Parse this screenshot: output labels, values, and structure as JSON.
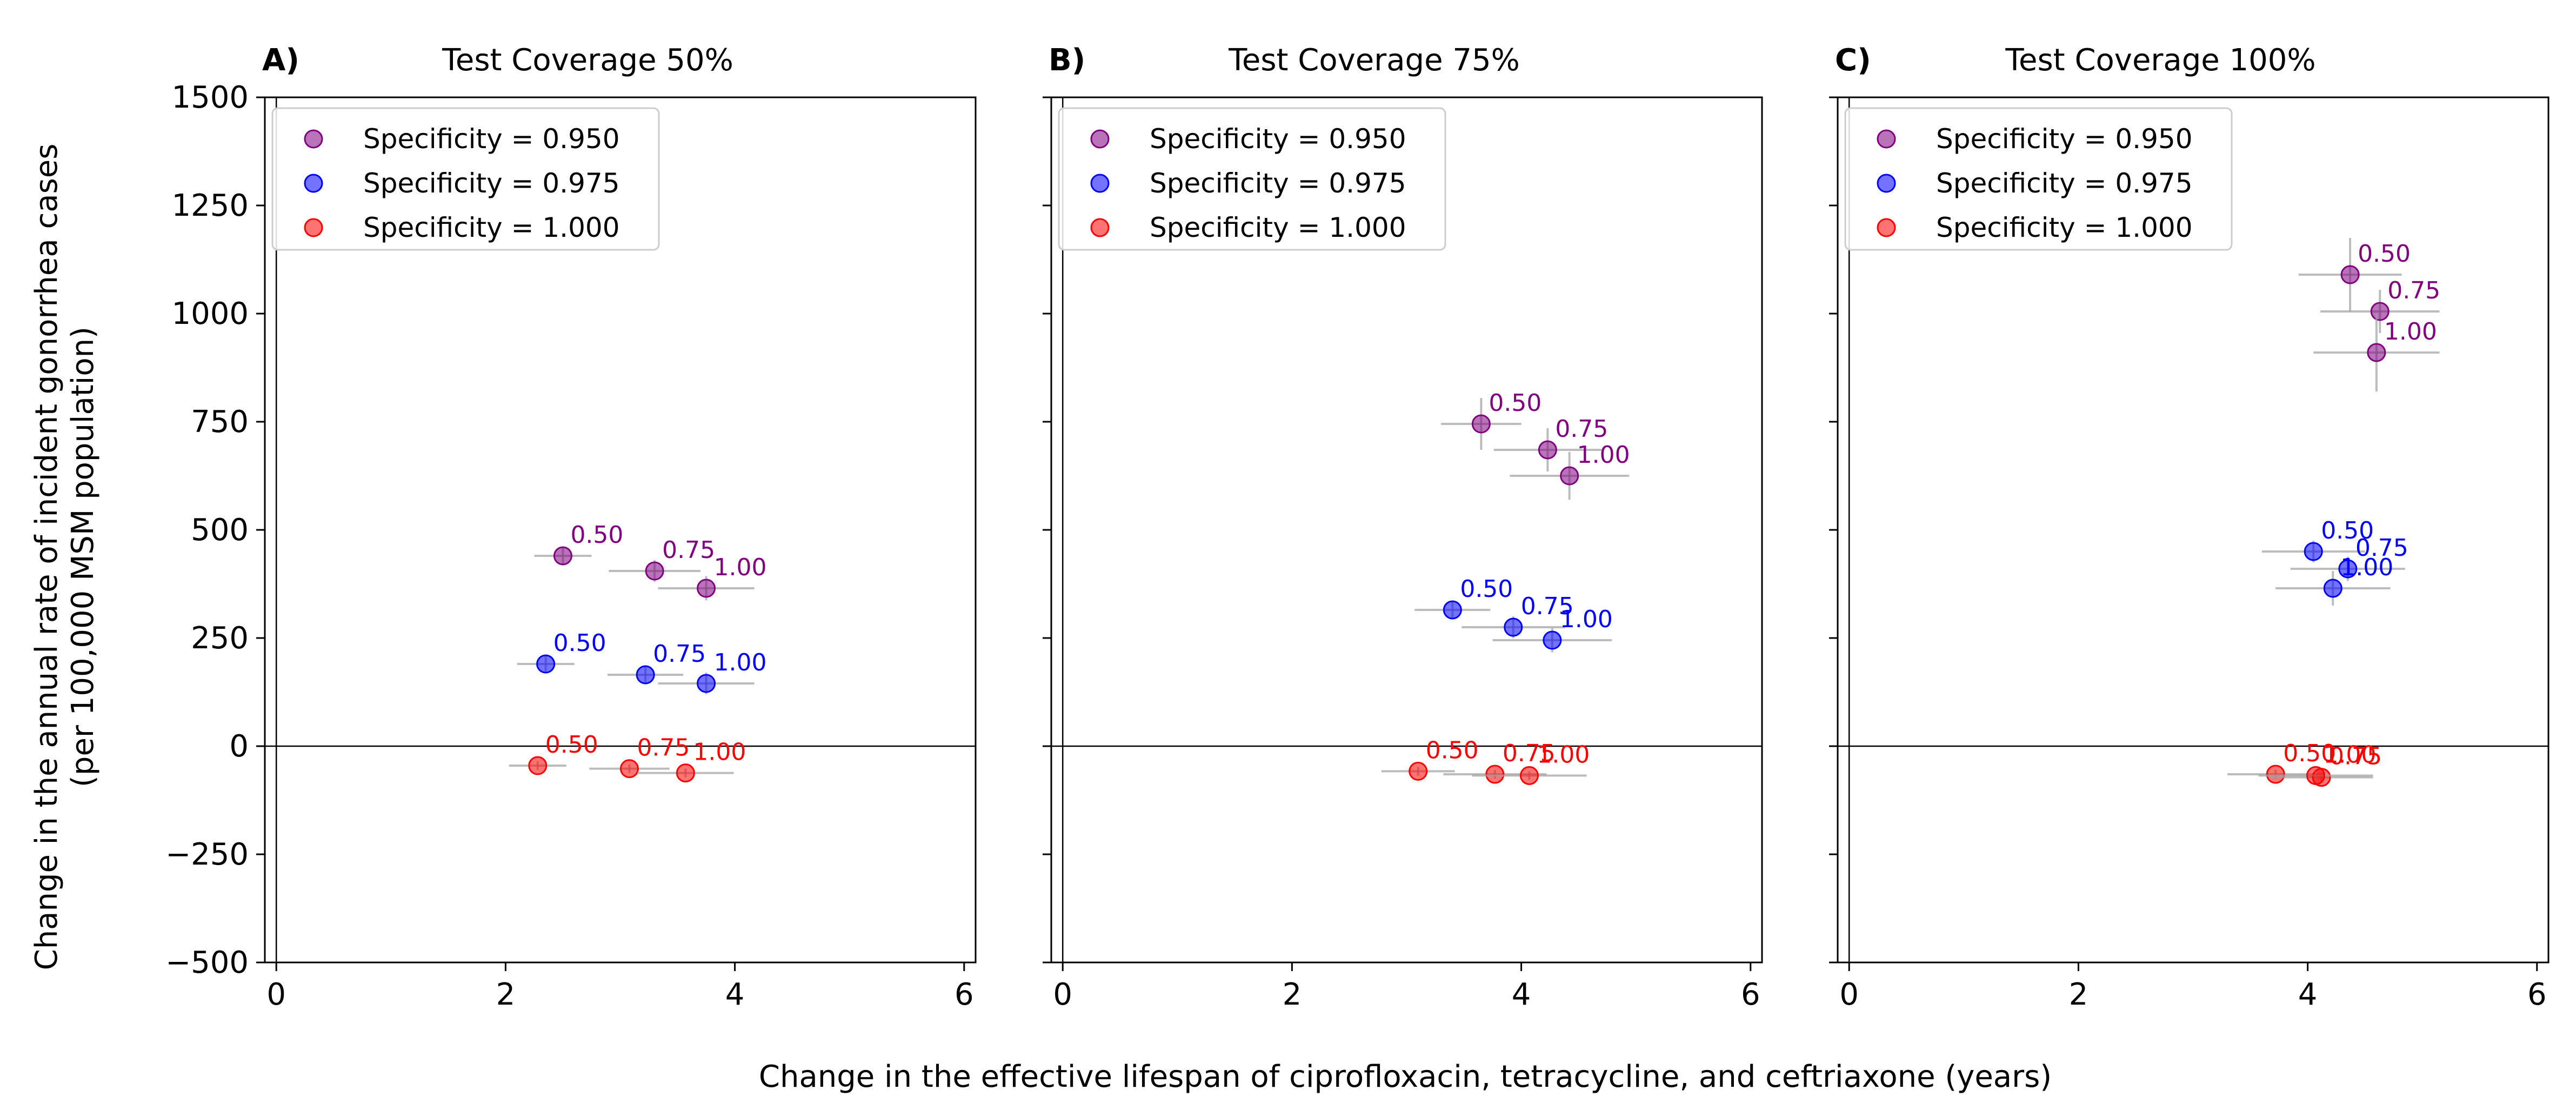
{
  "figure": {
    "ylabel_line1": "Change in the annual rate of incident gonorrhea cases",
    "ylabel_line2": "(per 100,000 MSM population)",
    "xlabel": "Change in the effective lifespan of ciprofloxacin, tetracycline, and ceftriaxone (years)"
  },
  "colors": {
    "spec_0950": "#800080",
    "spec_0975": "#0000ff",
    "spec_1000": "#ff0000",
    "errorbar": "#a0a0a0"
  },
  "chart_data": [
    {
      "type": "scatter",
      "panel_letter": "A)",
      "title": "Test Coverage 50%",
      "xlim": [
        -0.1,
        6.1
      ],
      "ylim": [
        -500,
        1500
      ],
      "xticks": [
        "0",
        "2",
        "4",
        "6"
      ],
      "yticks": [
        "1500",
        "1250",
        "1000",
        "750",
        "500",
        "250",
        "0",
        "−250",
        "−500"
      ],
      "grid": false,
      "legend_position": "top-left",
      "series": [
        {
          "name": "Specificity = 0.950",
          "color": "#800080",
          "points": [
            {
              "label": "0.50",
              "x": 2.5,
              "y": 440,
              "xerr": 0.25,
              "yerr": 20
            },
            {
              "label": "0.75",
              "x": 3.3,
              "y": 405,
              "xerr": 0.4,
              "yerr": 25
            },
            {
              "label": "1.00",
              "x": 3.75,
              "y": 365,
              "xerr": 0.42,
              "yerr": 28
            }
          ]
        },
        {
          "name": "Specificity = 0.975",
          "color": "#0000ff",
          "points": [
            {
              "label": "0.50",
              "x": 2.35,
              "y": 190,
              "xerr": 0.25,
              "yerr": 20
            },
            {
              "label": "0.75",
              "x": 3.22,
              "y": 165,
              "xerr": 0.33,
              "yerr": 22
            },
            {
              "label": "1.00",
              "x": 3.75,
              "y": 145,
              "xerr": 0.42,
              "yerr": 25
            }
          ]
        },
        {
          "name": "Specificity = 1.000",
          "color": "#ff0000",
          "points": [
            {
              "label": "0.50",
              "x": 2.28,
              "y": -45,
              "xerr": 0.25,
              "yerr": 10
            },
            {
              "label": "0.75",
              "x": 3.08,
              "y": -52,
              "xerr": 0.35,
              "yerr": 10
            },
            {
              "label": "1.00",
              "x": 3.57,
              "y": -62,
              "xerr": 0.42,
              "yerr": 10
            }
          ]
        }
      ]
    },
    {
      "type": "scatter",
      "panel_letter": "B)",
      "title": "Test Coverage 75%",
      "xlim": [
        -0.1,
        6.1
      ],
      "ylim": [
        -500,
        1500
      ],
      "xticks": [
        "0",
        "2",
        "4",
        "6"
      ],
      "yticks": [
        "1500",
        "1250",
        "1000",
        "750",
        "500",
        "250",
        "0",
        "−250",
        "−500"
      ],
      "grid": false,
      "legend_position": "top-left",
      "series": [
        {
          "name": "Specificity = 0.950",
          "color": "#800080",
          "points": [
            {
              "label": "0.50",
              "x": 3.65,
              "y": 745,
              "xerr": 0.35,
              "yerr": 60
            },
            {
              "label": "0.75",
              "x": 4.23,
              "y": 685,
              "xerr": 0.47,
              "yerr": 50
            },
            {
              "label": "1.00",
              "x": 4.42,
              "y": 625,
              "xerr": 0.52,
              "yerr": 55
            }
          ]
        },
        {
          "name": "Specificity = 0.975",
          "color": "#0000ff",
          "points": [
            {
              "label": "0.50",
              "x": 3.4,
              "y": 315,
              "xerr": 0.33,
              "yerr": 20
            },
            {
              "label": "0.75",
              "x": 3.93,
              "y": 275,
              "xerr": 0.45,
              "yerr": 25
            },
            {
              "label": "1.00",
              "x": 4.27,
              "y": 245,
              "xerr": 0.52,
              "yerr": 28
            }
          ]
        },
        {
          "name": "Specificity = 1.000",
          "color": "#ff0000",
          "points": [
            {
              "label": "0.50",
              "x": 3.1,
              "y": -58,
              "xerr": 0.32,
              "yerr": 10
            },
            {
              "label": "0.75",
              "x": 3.77,
              "y": -65,
              "xerr": 0.45,
              "yerr": 10
            },
            {
              "label": "1.00",
              "x": 4.07,
              "y": -68,
              "xerr": 0.5,
              "yerr": 10
            }
          ]
        }
      ]
    },
    {
      "type": "scatter",
      "panel_letter": "C)",
      "title": "Test Coverage 100%",
      "xlim": [
        -0.1,
        6.1
      ],
      "ylim": [
        -500,
        1500
      ],
      "xticks": [
        "0",
        "2",
        "4",
        "6"
      ],
      "yticks": [
        "1500",
        "1250",
        "1000",
        "750",
        "500",
        "250",
        "0",
        "−250",
        "−500"
      ],
      "grid": false,
      "legend_position": "top-left",
      "series": [
        {
          "name": "Specificity = 0.950",
          "color": "#800080",
          "points": [
            {
              "label": "0.50",
              "x": 4.37,
              "y": 1090,
              "xerr": 0.45,
              "yerr": 85
            },
            {
              "label": "0.75",
              "x": 4.63,
              "y": 1005,
              "xerr": 0.52,
              "yerr": 50
            },
            {
              "label": "1.00",
              "x": 4.6,
              "y": 910,
              "xerr": 0.55,
              "yerr": 90
            }
          ]
        },
        {
          "name": "Specificity = 0.975",
          "color": "#0000ff",
          "points": [
            {
              "label": "0.50",
              "x": 4.05,
              "y": 450,
              "xerr": 0.45,
              "yerr": 25
            },
            {
              "label": "0.75",
              "x": 4.35,
              "y": 410,
              "xerr": 0.5,
              "yerr": 28
            },
            {
              "label": "1.00",
              "x": 4.22,
              "y": 365,
              "xerr": 0.5,
              "yerr": 40
            }
          ]
        },
        {
          "name": "Specificity = 1.000",
          "color": "#ff0000",
          "points": [
            {
              "label": "0.50",
              "x": 3.72,
              "y": -65,
              "xerr": 0.42,
              "yerr": 10
            },
            {
              "label": "0.75",
              "x": 4.12,
              "y": -72,
              "xerr": 0.45,
              "yerr": 10
            },
            {
              "label": "1.00",
              "x": 4.07,
              "y": -68,
              "xerr": 0.5,
              "yerr": 10
            }
          ]
        }
      ]
    }
  ]
}
